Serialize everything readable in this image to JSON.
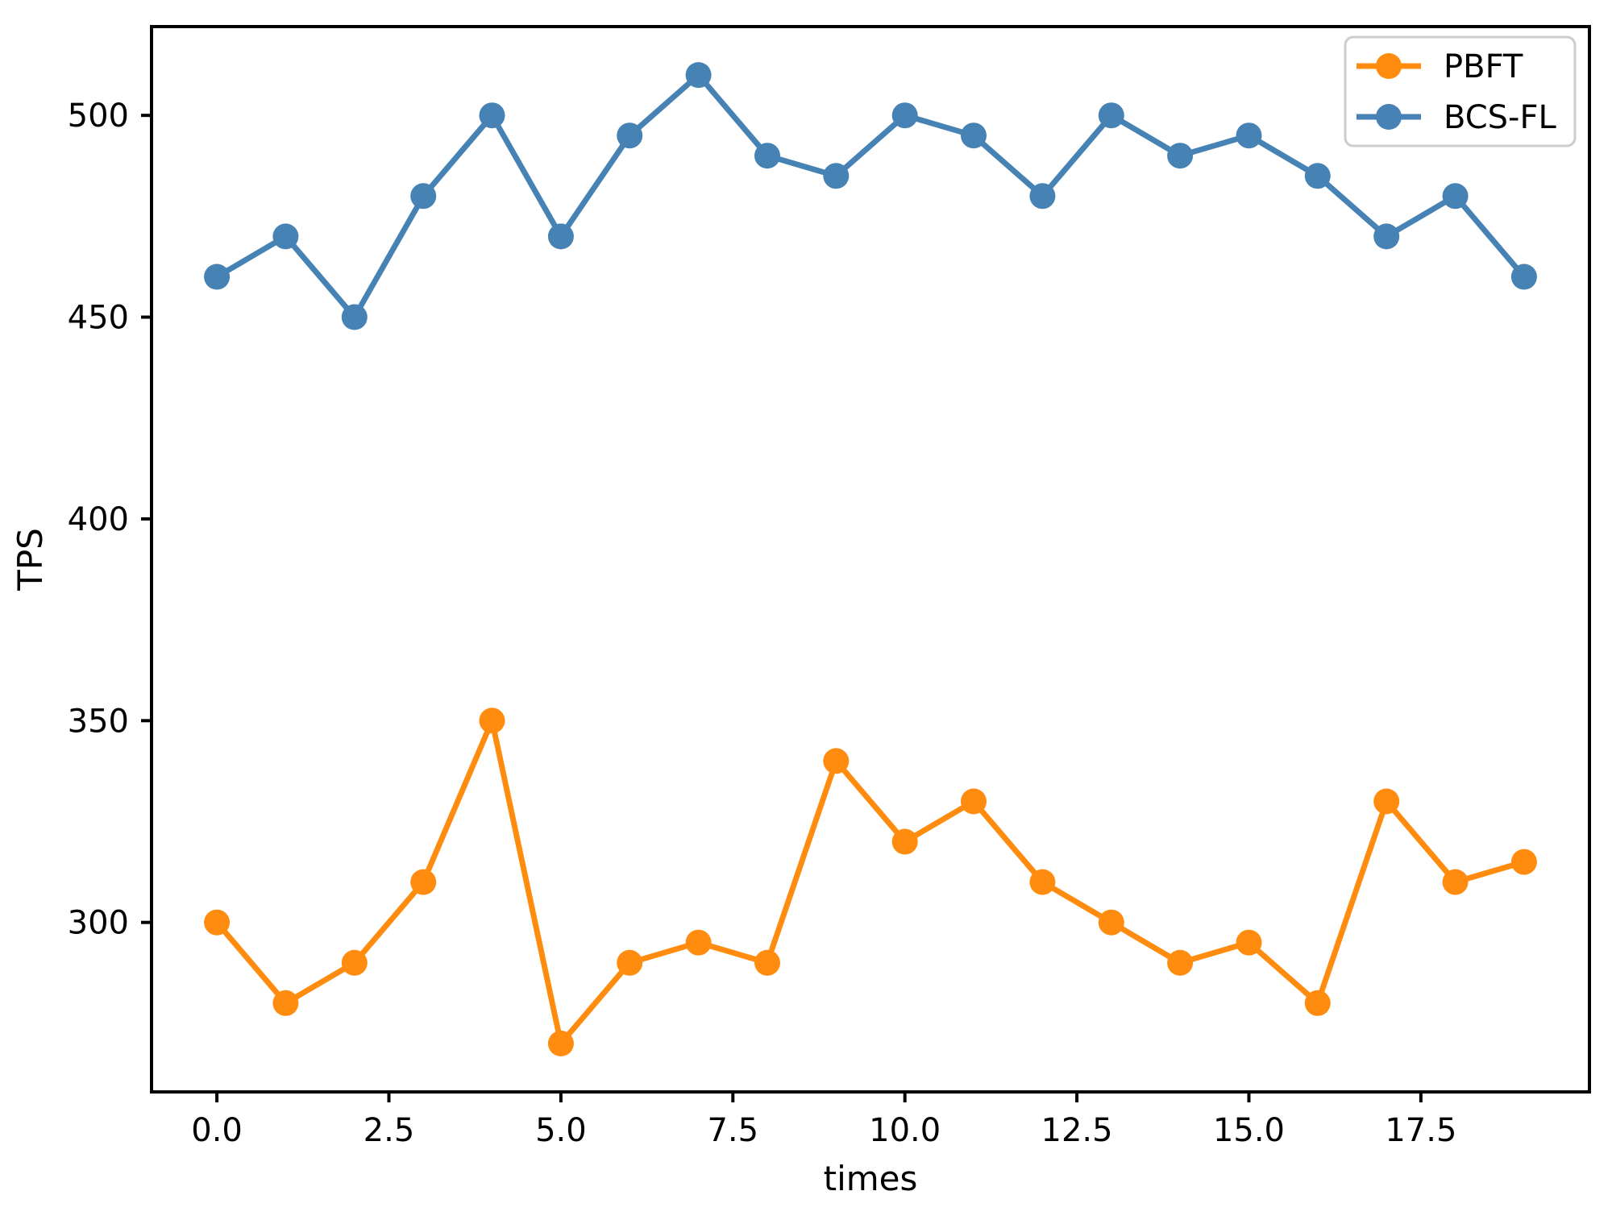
{
  "chart_data": {
    "type": "line",
    "title": "",
    "xlabel": "times",
    "ylabel": "TPS",
    "x": [
      0,
      1,
      2,
      3,
      4,
      5,
      6,
      7,
      8,
      9,
      10,
      11,
      12,
      13,
      14,
      15,
      16,
      17,
      18,
      19
    ],
    "series": [
      {
        "name": "PBFT",
        "color": "#ff8c0e",
        "marker": "circle",
        "values": [
          300,
          280,
          290,
          310,
          350,
          270,
          290,
          295,
          290,
          340,
          320,
          330,
          310,
          300,
          290,
          295,
          280,
          330,
          310,
          315
        ]
      },
      {
        "name": "BCS-FL",
        "color": "#4682b4",
        "marker": "circle",
        "values": [
          460,
          470,
          450,
          480,
          500,
          470,
          495,
          510,
          490,
          485,
          500,
          495,
          480,
          500,
          490,
          495,
          485,
          470,
          480,
          460
        ]
      }
    ],
    "xlim": [
      -0.95,
      19.95
    ],
    "ylim": [
      258,
      522
    ],
    "x_ticks": [
      0,
      2.5,
      5,
      7.5,
      10,
      12.5,
      15,
      17.5
    ],
    "x_tick_labels": [
      "0.0",
      "2.5",
      "5.0",
      "7.5",
      "10.0",
      "12.5",
      "15.0",
      "17.5"
    ],
    "y_ticks": [
      300,
      350,
      400,
      450,
      500
    ],
    "y_tick_labels": [
      "300",
      "350",
      "400",
      "450",
      "500"
    ],
    "grid": false,
    "legend_position": "upper right",
    "style": {
      "spine_color": "#000000",
      "spine_width": 4,
      "tick_length": 13,
      "tick_width": 4,
      "line_width": 7,
      "marker_radius": 16,
      "legend_border_color": "#cccccc",
      "legend_background": "#ffffff"
    }
  }
}
